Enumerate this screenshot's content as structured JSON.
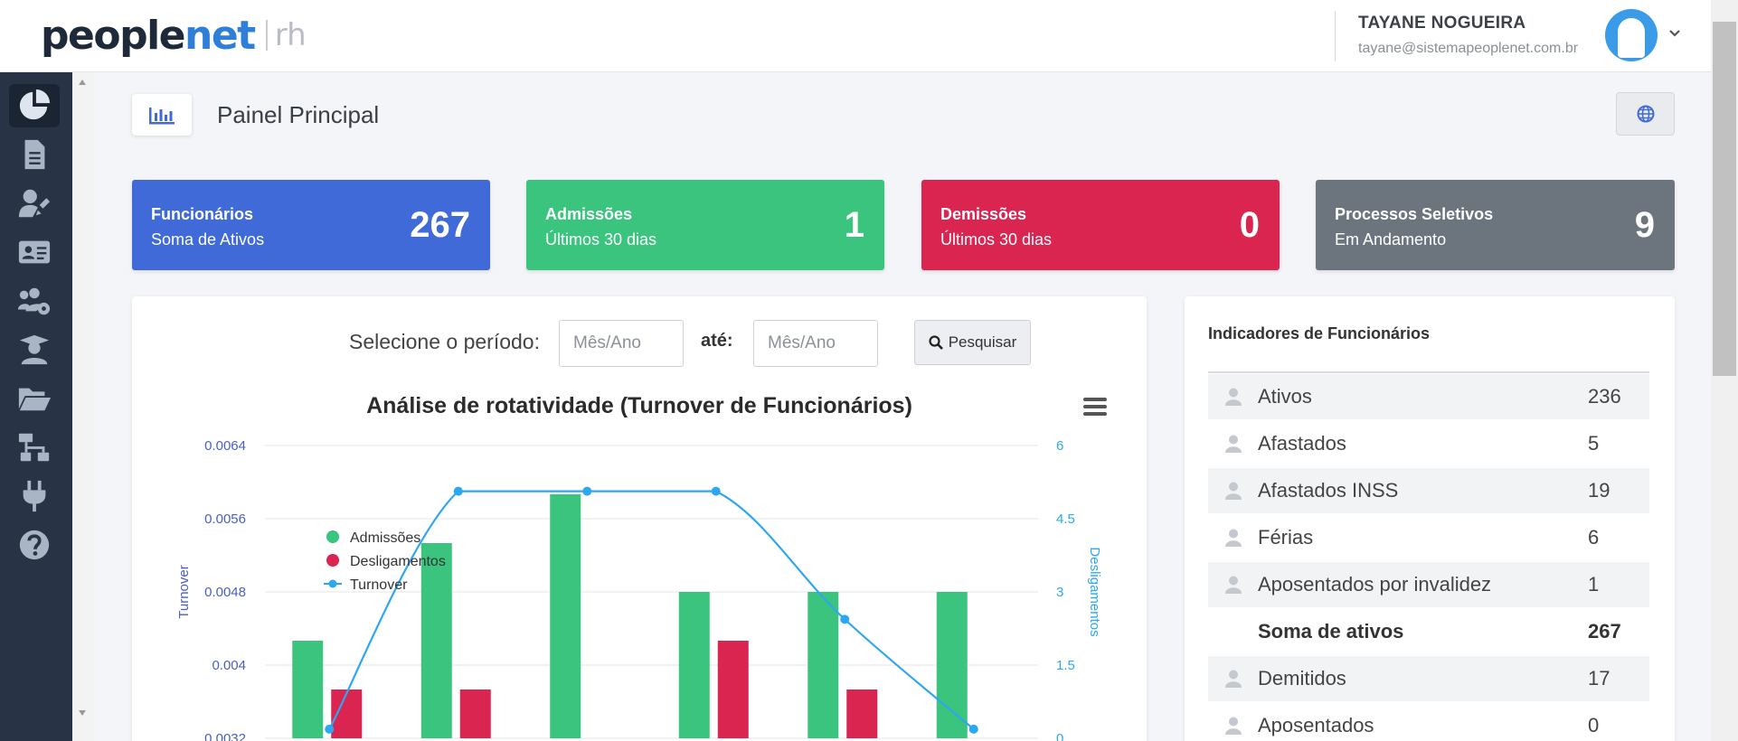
{
  "header": {
    "logo_main": "people",
    "logo_accent": "net",
    "logo_sub": "rh",
    "user_name": "TAYANE NOGUEIRA",
    "user_email": "tayane@sistemapeoplenet.com.br"
  },
  "sidebar": {
    "items": [
      {
        "icon": "pie-chart-icon",
        "active": true
      },
      {
        "icon": "document-icon",
        "active": false
      },
      {
        "icon": "user-edit-icon",
        "active": false
      },
      {
        "icon": "id-card-icon",
        "active": false
      },
      {
        "icon": "users-cog-icon",
        "active": false
      },
      {
        "icon": "graduate-icon",
        "active": false
      },
      {
        "icon": "folder-open-icon",
        "active": false
      },
      {
        "icon": "sitemap-icon",
        "active": false
      },
      {
        "icon": "plug-icon",
        "active": false
      },
      {
        "icon": "question-circle-icon",
        "active": false
      }
    ]
  },
  "page": {
    "title": "Painel Principal"
  },
  "cards": [
    {
      "title": "Funcionários",
      "subtitle": "Soma de Ativos",
      "value": "267",
      "color": "#3f6ad8"
    },
    {
      "title": "Admissões",
      "subtitle": "Últimos 30 dias",
      "value": "1",
      "color": "#3ac47d"
    },
    {
      "title": "Demissões",
      "subtitle": "Últimos 30 dias",
      "value": "0",
      "color": "#d92550"
    },
    {
      "title": "Processos Seletivos",
      "subtitle": "Em Andamento",
      "value": "9",
      "color": "#6c757d"
    }
  ],
  "filter": {
    "label": "Selecione o período:",
    "from_placeholder": "Mês/Ano",
    "to_label": "até:",
    "to_placeholder": "Mês/Ano",
    "search_label": "Pesquisar"
  },
  "chart_data": {
    "type": "bar",
    "title": "Análise de rotatividade (Turnover de Funcionários)",
    "ylabel_left": "Turnover",
    "ylabel_right": "Desligamentos",
    "left_ticks": [
      "0.0064",
      "0.0056",
      "0.0048",
      "0.004",
      "0.0032"
    ],
    "right_ticks": [
      "6",
      "4.5",
      "3",
      "1.5",
      "0"
    ],
    "ylim_right": [
      0,
      6
    ],
    "ylim_left": [
      0.0032,
      0.0064
    ],
    "legend_position": "top-left",
    "colors": {
      "admissoes": "#3ac47d",
      "desligamentos": "#d92550",
      "turnover": "#2ca7f0",
      "axis_left": "#4a5fc1",
      "axis_right": "#2ca7f0"
    },
    "series": [
      {
        "name": "Admissões",
        "values": [
          2,
          4,
          5,
          3,
          3,
          3
        ]
      },
      {
        "name": "Desligamentos",
        "values": [
          1,
          1,
          null,
          2,
          1,
          null
        ]
      },
      {
        "name": "Turnover",
        "values": [
          0.0033,
          0.0059,
          0.0059,
          0.0059,
          0.0045,
          0.0033
        ]
      }
    ]
  },
  "indicators": {
    "title": "Indicadores de Funcionários",
    "rows": [
      {
        "label": "Ativos",
        "value": "236",
        "icon": true,
        "shaded": true,
        "bold": false
      },
      {
        "label": "Afastados",
        "value": "5",
        "icon": true,
        "shaded": false,
        "bold": false
      },
      {
        "label": "Afastados INSS",
        "value": "19",
        "icon": true,
        "shaded": true,
        "bold": false
      },
      {
        "label": "Férias",
        "value": "6",
        "icon": true,
        "shaded": false,
        "bold": false
      },
      {
        "label": "Aposentados por invalidez",
        "value": "1",
        "icon": true,
        "shaded": true,
        "bold": false
      },
      {
        "label": "Soma de ativos",
        "value": "267",
        "icon": false,
        "shaded": false,
        "bold": true
      },
      {
        "label": "Demitidos",
        "value": "17",
        "icon": true,
        "shaded": true,
        "bold": false
      },
      {
        "label": "Aposentados",
        "value": "0",
        "icon": true,
        "shaded": false,
        "bold": false
      }
    ]
  }
}
